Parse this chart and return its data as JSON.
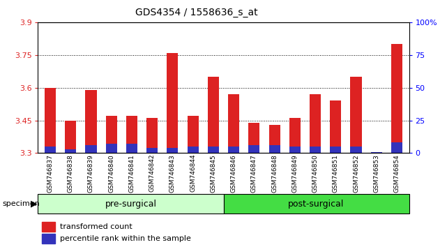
{
  "title": "GDS4354 / 1558636_s_at",
  "samples": [
    "GSM746837",
    "GSM746838",
    "GSM746839",
    "GSM746840",
    "GSM746841",
    "GSM746842",
    "GSM746843",
    "GSM746844",
    "GSM746845",
    "GSM746846",
    "GSM746847",
    "GSM746848",
    "GSM746849",
    "GSM746850",
    "GSM746851",
    "GSM746852",
    "GSM746853",
    "GSM746854"
  ],
  "transformed_count": [
    3.6,
    3.45,
    3.59,
    3.47,
    3.47,
    3.46,
    3.76,
    3.47,
    3.65,
    3.57,
    3.44,
    3.43,
    3.46,
    3.57,
    3.54,
    3.65,
    3.3,
    3.8
  ],
  "percentile_rank": [
    5,
    3,
    6,
    7,
    7,
    4,
    4,
    5,
    5,
    5,
    6,
    6,
    5,
    5,
    5,
    5,
    1,
    8
  ],
  "ymin": 3.3,
  "ymax": 3.9,
  "yticks": [
    3.3,
    3.45,
    3.6,
    3.75,
    3.9
  ],
  "right_yticks": [
    0,
    25,
    50,
    75,
    100
  ],
  "bar_color_red": "#DD2222",
  "bar_color_blue": "#3333BB",
  "groups": [
    {
      "label": "pre-surgical",
      "start": 0,
      "end": 9,
      "color": "#CCFFCC"
    },
    {
      "label": "post-surgical",
      "start": 9,
      "end": 18,
      "color": "#44DD44"
    }
  ],
  "legend_red_label": "transformed count",
  "legend_blue_label": "percentile rank within the sample",
  "specimen_label": "specimen",
  "bar_width": 0.55,
  "background_color": "#FFFFFF"
}
